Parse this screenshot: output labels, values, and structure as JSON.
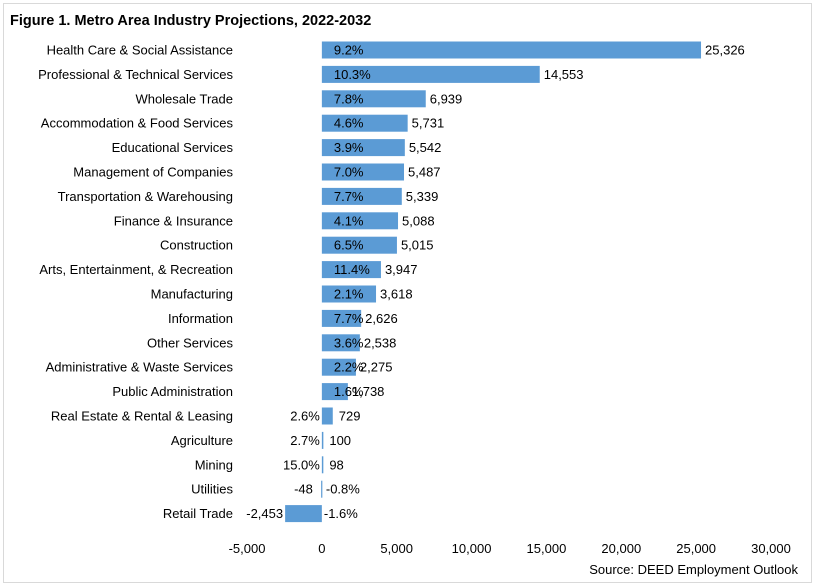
{
  "chart_data": {
    "type": "bar",
    "orientation": "horizontal",
    "title": "Figure 1. Metro Area Industry Projections, 2022-2032",
    "source": "Source: DEED Employment Outlook",
    "xlim": [
      -5000,
      30000
    ],
    "xticks": [
      -5000,
      0,
      5000,
      10000,
      15000,
      20000,
      25000,
      30000
    ],
    "xtick_labels": [
      "-5,000",
      "0",
      "5,000",
      "10,000",
      "15,000",
      "20,000",
      "25,000",
      "30,000"
    ],
    "bar_color": "#5b9bd5",
    "categories": [
      "Health Care & Social Assistance",
      "Professional & Technical Services",
      "Wholesale Trade",
      "Accommodation & Food Services",
      "Educational Services",
      "Management of Companies",
      "Transportation & Warehousing",
      "Finance & Insurance",
      "Construction",
      "Arts, Entertainment, & Recreation",
      "Manufacturing",
      "Information",
      "Other Services",
      "Administrative & Waste Services",
      "Public Administration",
      "Real Estate & Rental & Leasing",
      "Agriculture",
      "Mining",
      "Utilities",
      "Retail Trade"
    ],
    "values": [
      25326,
      14553,
      6939,
      5731,
      5542,
      5487,
      5339,
      5088,
      5015,
      3947,
      3618,
      2626,
      2538,
      2275,
      1738,
      729,
      100,
      98,
      -48,
      -2453
    ],
    "value_labels": [
      "25,326",
      "14,553",
      "6,939",
      "5,731",
      "5,542",
      "5,487",
      "5,339",
      "5,088",
      "5,015",
      "3,947",
      "3,618",
      "2,626",
      "2,538",
      "2,275",
      "1,738",
      "729",
      "100",
      "98",
      "-48",
      "-2,453"
    ],
    "percent_labels": [
      "9.2%",
      "10.3%",
      "7.8%",
      "4.6%",
      "3.9%",
      "7.0%",
      "7.7%",
      "4.1%",
      "6.5%",
      "11.4%",
      "2.1%",
      "7.7%",
      "3.6%",
      "2.2%",
      "1.6%",
      "2.6%",
      "2.7%",
      "15.0%",
      "-0.8%",
      "-1.6%"
    ]
  }
}
